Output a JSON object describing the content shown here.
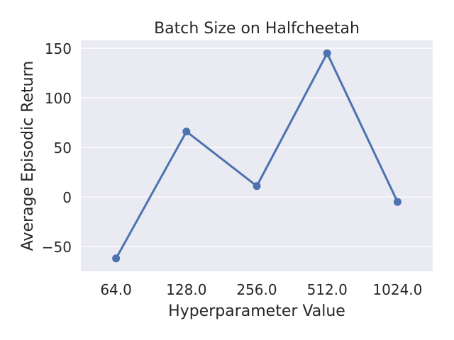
{
  "chart_data": {
    "type": "line",
    "title": "Batch Size on Halfcheetah",
    "xlabel": "Hyperparameter Value",
    "ylabel": "Average Episodic Return",
    "categories": [
      "64.0",
      "128.0",
      "256.0",
      "512.0",
      "1024.0"
    ],
    "series": [
      {
        "values": [
          -62,
          66,
          11,
          145,
          -5
        ]
      }
    ],
    "ylim": [
      -75,
      158
    ],
    "yticks": [
      -50,
      0,
      50,
      100,
      150
    ],
    "ytick_labels": [
      "−50",
      "0",
      "50",
      "100",
      "150"
    ],
    "grid": true,
    "colors": {
      "line": "#4c72b0",
      "background": "#eaeaf2",
      "grid": "#ffffff"
    }
  }
}
